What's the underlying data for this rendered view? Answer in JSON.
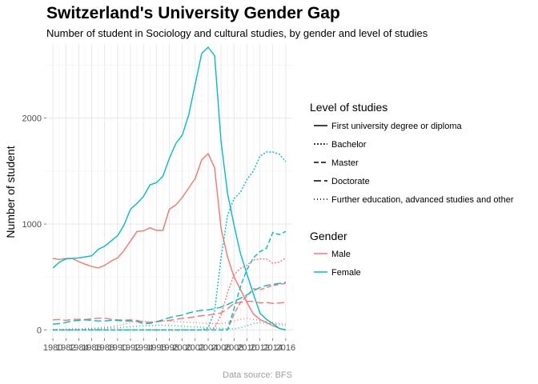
{
  "chart_data": {
    "type": "line",
    "title": "Switzerland's University Gender Gap",
    "subtitle": "Number of student in Sociology and cultural studies, by gender and level of studies",
    "xlabel": "",
    "ylabel": "Number of student",
    "caption": "Data source: BFS",
    "xlim": [
      1979,
      2017
    ],
    "ylim": [
      -80,
      2700
    ],
    "x_ticks": [
      1980,
      1982,
      1984,
      1986,
      1988,
      1990,
      1992,
      1994,
      1996,
      1998,
      2000,
      2002,
      2004,
      2006,
      2008,
      2010,
      2012,
      2014,
      2016
    ],
    "x_tick_labels": [
      "1980",
      "1982",
      "1984",
      "1986",
      "1988",
      "1990",
      "1992",
      "1994",
      "1996",
      "1998",
      "2000",
      "2002",
      "2004",
      "2006",
      "2008",
      "2010",
      "2012",
      "2014",
      "2016"
    ],
    "y_ticks": [
      0,
      1000,
      2000
    ],
    "y_tick_labels": [
      "0",
      "1000",
      "2000"
    ],
    "grid": true,
    "legend_position": "right",
    "colors": {
      "Male": "#F8766D",
      "Female": "#00BFC4"
    },
    "legend": {
      "linetype_title": "Level of studies",
      "linetypes": [
        {
          "label": "First university degree or diploma",
          "dash": ""
        },
        {
          "label": "Bachelor",
          "dash": "2,2"
        },
        {
          "label": "Master",
          "dash": "6,3"
        },
        {
          "label": "Doctorate",
          "dash": "9,4"
        },
        {
          "label": "Further education, advanced studies and other",
          "dash": "1,3"
        }
      ],
      "color_title": "Gender",
      "colors": [
        {
          "label": "Male",
          "color": "#F8766D"
        },
        {
          "label": "Female",
          "color": "#00BFC4"
        }
      ]
    },
    "x": [
      1980,
      1981,
      1982,
      1983,
      1984,
      1985,
      1986,
      1987,
      1988,
      1989,
      1990,
      1991,
      1992,
      1993,
      1994,
      1995,
      1996,
      1997,
      1998,
      1999,
      2000,
      2001,
      2002,
      2003,
      2004,
      2005,
      2006,
      2007,
      2008,
      2009,
      2010,
      2011,
      2012,
      2013,
      2014,
      2015,
      2016
    ],
    "series": [
      {
        "gender": "Male",
        "level": "First university degree or diploma",
        "dash": "",
        "values": [
          675,
          665,
          675,
          675,
          645,
          620,
          600,
          585,
          610,
          650,
          680,
          750,
          840,
          930,
          935,
          965,
          940,
          940,
          1140,
          1180,
          1250,
          1340,
          1430,
          1605,
          1665,
          1530,
          960,
          690,
          500,
          380,
          260,
          150,
          100,
          70,
          40,
          15,
          0
        ]
      },
      {
        "gender": "Female",
        "level": "First university degree or diploma",
        "dash": "",
        "values": [
          585,
          640,
          670,
          675,
          680,
          690,
          700,
          760,
          790,
          840,
          890,
          990,
          1140,
          1195,
          1260,
          1370,
          1390,
          1450,
          1620,
          1760,
          1840,
          2030,
          2320,
          2610,
          2670,
          2590,
          1780,
          1290,
          990,
          720,
          530,
          340,
          160,
          100,
          60,
          15,
          0
        ]
      },
      {
        "gender": "Male",
        "level": "Bachelor",
        "dash": "2,2",
        "values": [
          0,
          0,
          0,
          0,
          0,
          0,
          0,
          0,
          0,
          0,
          0,
          0,
          0,
          0,
          0,
          0,
          0,
          0,
          0,
          0,
          0,
          0,
          0,
          0,
          0,
          20,
          140,
          350,
          520,
          580,
          610,
          660,
          670,
          670,
          630,
          640,
          680
        ]
      },
      {
        "gender": "Female",
        "level": "Bachelor",
        "dash": "2,2",
        "values": [
          0,
          0,
          0,
          0,
          0,
          0,
          0,
          0,
          0,
          0,
          0,
          0,
          0,
          0,
          0,
          0,
          0,
          0,
          0,
          0,
          0,
          0,
          0,
          0,
          20,
          180,
          680,
          1080,
          1240,
          1300,
          1420,
          1500,
          1640,
          1680,
          1680,
          1660,
          1590
        ]
      },
      {
        "gender": "Male",
        "level": "Master",
        "dash": "6,3",
        "values": [
          0,
          0,
          0,
          0,
          0,
          0,
          0,
          0,
          0,
          0,
          0,
          0,
          0,
          0,
          0,
          0,
          0,
          0,
          0,
          0,
          0,
          0,
          0,
          0,
          0,
          0,
          0,
          0,
          150,
          260,
          320,
          390,
          380,
          400,
          420,
          430,
          440
        ]
      },
      {
        "gender": "Female",
        "level": "Master",
        "dash": "6,3",
        "values": [
          0,
          0,
          0,
          0,
          0,
          0,
          0,
          0,
          0,
          0,
          0,
          0,
          0,
          0,
          0,
          0,
          0,
          0,
          0,
          0,
          0,
          0,
          0,
          0,
          0,
          0,
          0,
          0,
          200,
          410,
          570,
          680,
          740,
          770,
          920,
          900,
          930
        ]
      },
      {
        "gender": "Male",
        "level": "Doctorate",
        "dash": "9,4",
        "values": [
          95,
          98,
          90,
          100,
          100,
          98,
          105,
          110,
          112,
          100,
          95,
          92,
          95,
          90,
          75,
          72,
          75,
          85,
          90,
          100,
          110,
          115,
          125,
          135,
          140,
          150,
          160,
          200,
          250,
          260,
          270,
          270,
          255,
          260,
          250,
          255,
          260
        ]
      },
      {
        "gender": "Female",
        "level": "Doctorate",
        "dash": "9,4",
        "values": [
          55,
          60,
          70,
          85,
          90,
          95,
          90,
          85,
          85,
          90,
          90,
          85,
          85,
          80,
          60,
          62,
          78,
          95,
          115,
          130,
          140,
          160,
          175,
          185,
          190,
          200,
          215,
          240,
          270,
          300,
          330,
          370,
          400,
          420,
          430,
          440,
          450
        ]
      },
      {
        "gender": "Male",
        "level": "Further education, advanced studies and other",
        "dash": "1,3",
        "values": [
          5,
          5,
          8,
          10,
          10,
          12,
          15,
          20,
          25,
          30,
          40,
          55,
          70,
          80,
          85,
          75,
          80,
          85,
          85,
          80,
          75,
          70,
          70,
          65,
          60,
          60,
          60,
          70,
          85,
          100,
          110,
          100,
          90,
          80,
          70,
          60,
          55
        ]
      },
      {
        "gender": "Female",
        "level": "Further education, advanced studies and other",
        "dash": "1,3",
        "values": [
          0,
          2,
          3,
          5,
          6,
          8,
          10,
          12,
          15,
          18,
          20,
          25,
          30,
          35,
          40,
          40,
          45,
          45,
          42,
          40,
          35,
          30,
          28,
          25,
          20,
          18,
          15,
          12,
          10,
          20,
          40,
          60,
          70,
          65,
          60,
          50,
          40
        ]
      }
    ]
  }
}
